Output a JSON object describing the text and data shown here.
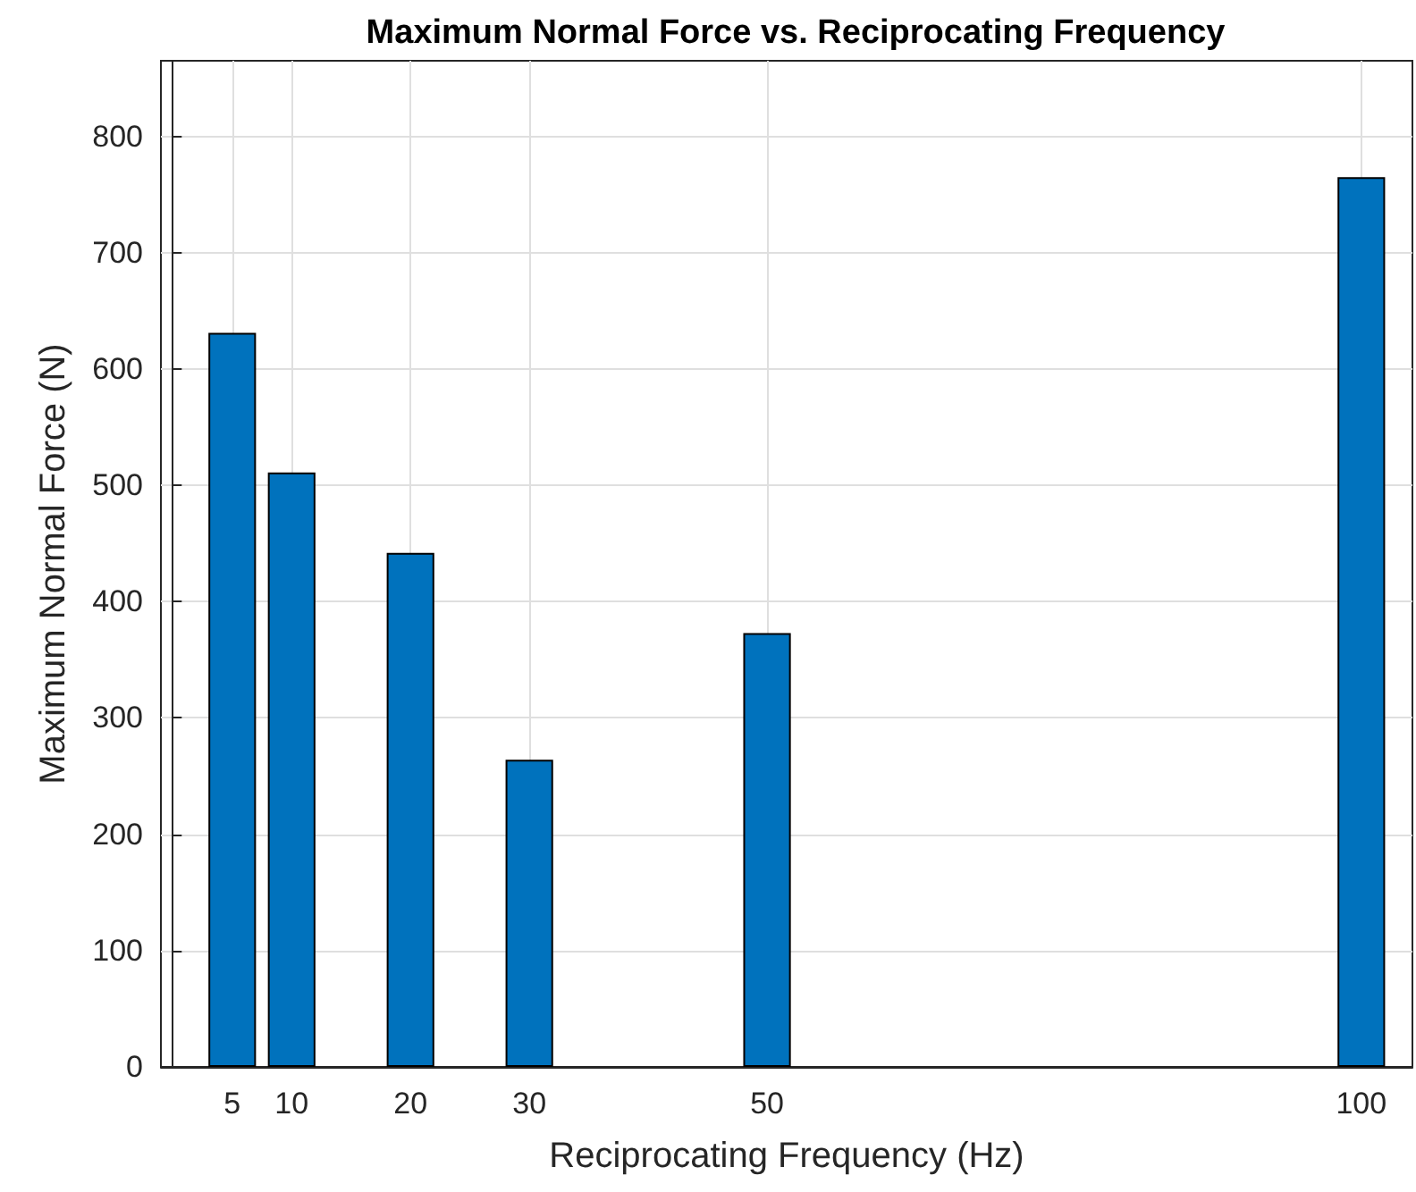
{
  "chart_data": {
    "type": "bar",
    "title": "Maximum Normal Force vs. Reciprocating Frequency",
    "xlabel": "Reciprocating Frequency (Hz)",
    "ylabel": "Maximum Normal Force (N)",
    "x": [
      5,
      10,
      20,
      30,
      50,
      100
    ],
    "values": [
      631,
      511,
      442,
      264,
      373,
      765
    ],
    "color": "#0072bd",
    "xlim": [
      -1,
      104.3
    ],
    "xticks": [
      5,
      10,
      20,
      30,
      50,
      100
    ],
    "ylim": [
      0,
      865
    ],
    "yticks": [
      0,
      100,
      200,
      300,
      400,
      500,
      600,
      700,
      800
    ],
    "grid": true
  }
}
